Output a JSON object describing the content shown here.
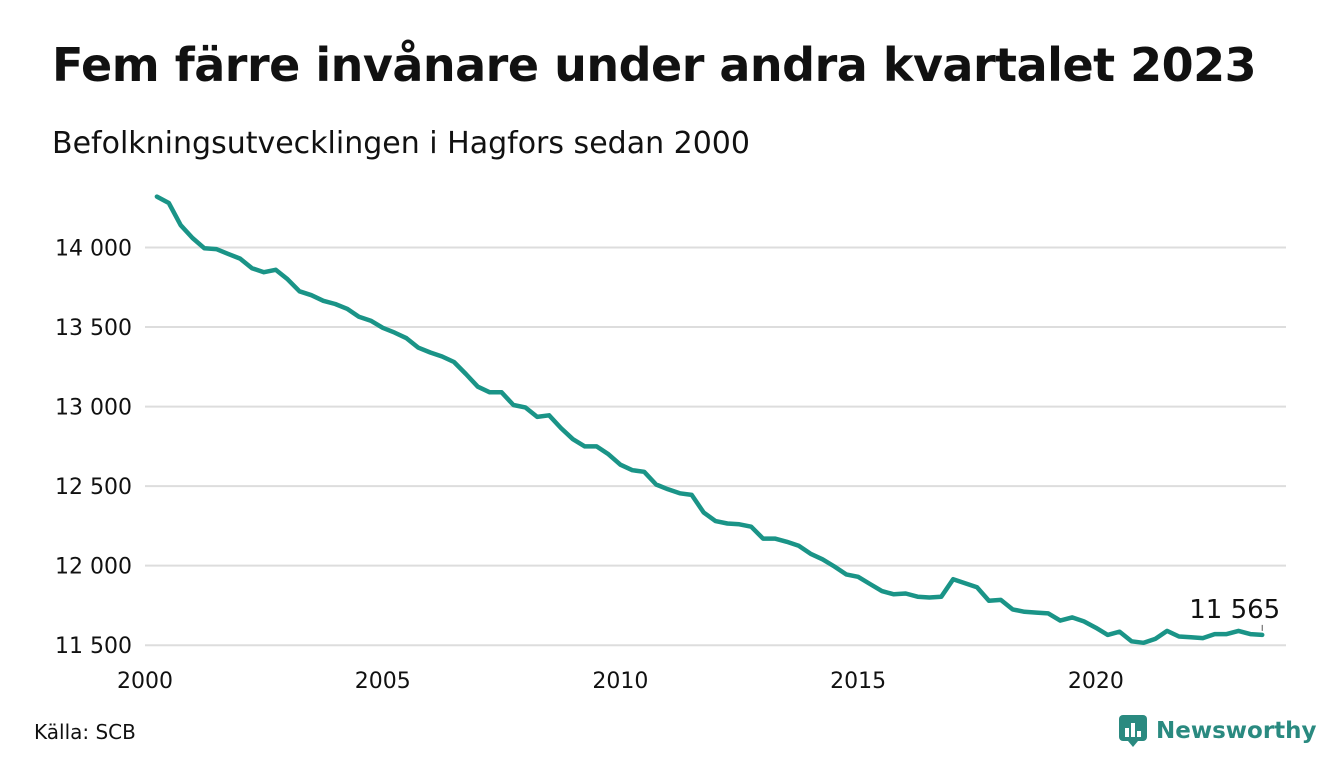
{
  "title": "Fem färre invånare under andra kvartalet 2023",
  "subtitle": "Befolkningsutvecklingen i Hagfors sedan 2000",
  "source": "Källa: SCB",
  "brand": "Newsworthy",
  "colors": {
    "line": "#1a9487",
    "grid": "#dddddd",
    "text": "#111111",
    "brand": "#2a8a80"
  },
  "chart_data": {
    "type": "line",
    "title": "",
    "xlabel": "",
    "ylabel": "",
    "xlim": [
      2000,
      2024
    ],
    "ylim": [
      11470,
      14330
    ],
    "grid": true,
    "x_ticks": [
      2000,
      2005,
      2010,
      2015,
      2020
    ],
    "x_tick_labels": [
      "2000",
      "2005",
      "2010",
      "2015",
      "2020"
    ],
    "y_ticks": [
      11500,
      12000,
      12500,
      13000,
      13500,
      14000
    ],
    "y_tick_labels": [
      "11 500",
      "12 000",
      "12 500",
      "13 000",
      "13 500",
      "14 000"
    ],
    "end_label": "11 565",
    "series": [
      {
        "x": [
          2000.25,
          2000.5,
          2000.75,
          2001.0,
          2001.25,
          2001.5,
          2001.75,
          2002.0,
          2002.25,
          2002.5,
          2002.75,
          2003.0,
          2003.25,
          2003.5,
          2003.75,
          2004.0,
          2004.25,
          2004.5,
          2004.75,
          2005.0,
          2005.25,
          2005.5,
          2005.75,
          2006.0,
          2006.25,
          2006.5,
          2006.75,
          2007.0,
          2007.25,
          2007.5,
          2007.75,
          2008.0,
          2008.25,
          2008.5,
          2008.75,
          2009.0,
          2009.25,
          2009.5,
          2009.75,
          2010.0,
          2010.25,
          2010.5,
          2010.75,
          2011.0,
          2011.25,
          2011.5,
          2011.75,
          2012.0,
          2012.25,
          2012.5,
          2012.75,
          2013.0,
          2013.25,
          2013.5,
          2013.75,
          2014.0,
          2014.25,
          2014.5,
          2014.75,
          2015.0,
          2015.25,
          2015.5,
          2015.75,
          2016.0,
          2016.25,
          2016.5,
          2016.75,
          2017.0,
          2017.25,
          2017.5,
          2017.75,
          2018.0,
          2018.25,
          2018.5,
          2018.75,
          2019.0,
          2019.25,
          2019.5,
          2019.75,
          2020.0,
          2020.25,
          2020.5,
          2020.75,
          2021.0,
          2021.25,
          2021.5,
          2021.75,
          2022.0,
          2022.25,
          2022.5,
          2022.75,
          2023.0,
          2023.25,
          2023.5
        ],
        "values": [
          14320,
          14280,
          14140,
          14060,
          13995,
          13990,
          13960,
          13930,
          13870,
          13845,
          13860,
          13800,
          13725,
          13700,
          13665,
          13645,
          13615,
          13565,
          13540,
          13495,
          13465,
          13430,
          13370,
          13340,
          13315,
          13280,
          13205,
          13125,
          13090,
          13090,
          13010,
          12995,
          12935,
          12945,
          12865,
          12795,
          12750,
          12750,
          12700,
          12635,
          12600,
          12590,
          12510,
          12480,
          12455,
          12445,
          12335,
          12280,
          12265,
          12260,
          12245,
          12170,
          12170,
          12150,
          12125,
          12075,
          12040,
          11995,
          11945,
          11930,
          11885,
          11840,
          11820,
          11825,
          11805,
          11800,
          11805,
          11915,
          11890,
          11865,
          11780,
          11785,
          11725,
          11710,
          11705,
          11700,
          11655,
          11675,
          11650,
          11610,
          11565,
          11585,
          11525,
          11515,
          11540,
          11590,
          11555,
          11550,
          11545,
          11570,
          11570,
          11590,
          11570,
          11565
        ]
      }
    ]
  }
}
